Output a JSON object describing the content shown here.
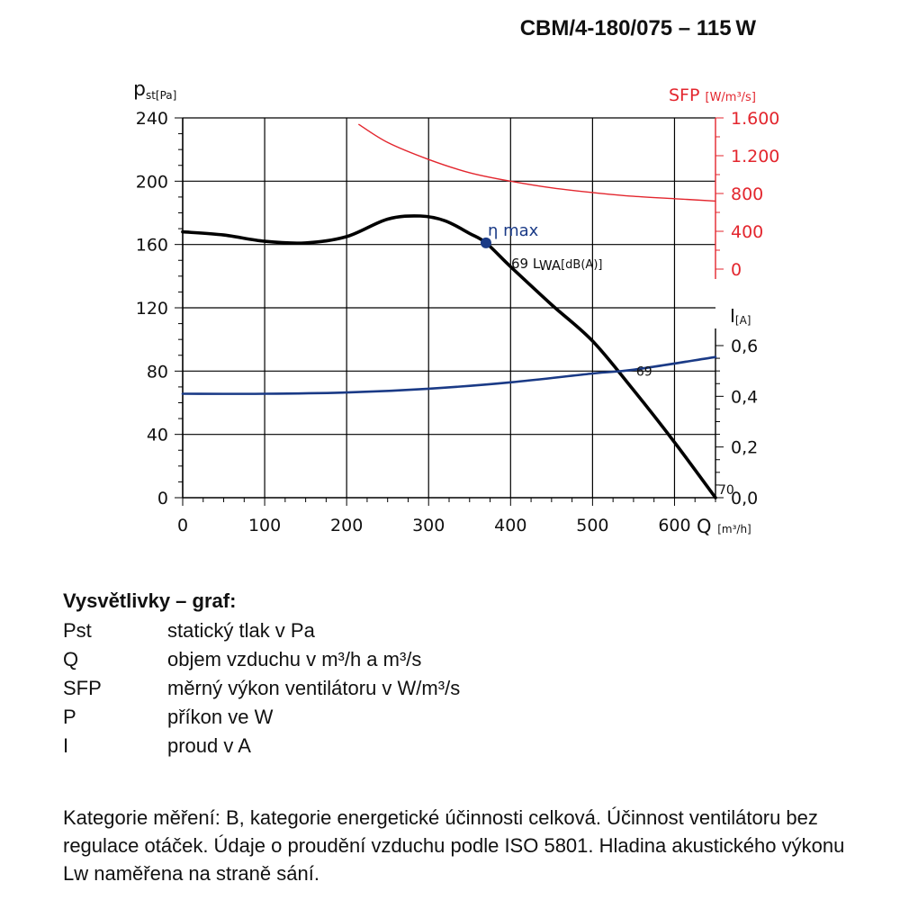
{
  "title": "CBM/4-180/075 – 115 W",
  "chart_data": {
    "type": "line",
    "axes": {
      "x": {
        "label": "Q",
        "unit": "[m³/h]",
        "range": [
          0,
          650
        ],
        "ticks": [
          0,
          100,
          200,
          300,
          400,
          500,
          600
        ]
      },
      "y_left": {
        "label": "p",
        "subscript": "st",
        "unit": "[Pa]",
        "range": [
          0,
          240
        ],
        "ticks": [
          0,
          40,
          80,
          120,
          160,
          200,
          240
        ]
      },
      "y_right_sfp": {
        "label": "SFP",
        "unit": "[W/m³/s]",
        "range": [
          0,
          1600
        ],
        "ticks": [
          "0",
          "400",
          "800",
          "1.200",
          "1.600"
        ],
        "tick_values": [
          0,
          400,
          800,
          1200,
          1600
        ],
        "color": "#e3262e"
      },
      "y_right_current": {
        "label": "I",
        "unit": "[A]",
        "range": [
          0,
          0.6
        ],
        "ticks": [
          "0,0",
          "0,2",
          "0,4",
          "0,6"
        ],
        "tick_values": [
          0,
          0.2,
          0.4,
          0.6
        ]
      }
    },
    "grid": true,
    "series": [
      {
        "kind": "pressure",
        "color": "#000000",
        "x": [
          0,
          50,
          100,
          150,
          200,
          250,
          290,
          320,
          350,
          370,
          400,
          450,
          500,
          550,
          600,
          650
        ],
        "y": [
          168,
          166,
          162,
          161,
          165,
          176,
          178,
          175,
          167,
          161,
          146,
          122,
          99,
          68,
          35,
          0
        ]
      },
      {
        "kind": "current",
        "color": "#1a3a86",
        "x": [
          0,
          100,
          200,
          300,
          400,
          500,
          550,
          650
        ],
        "y": [
          0.41,
          0.41,
          0.415,
          0.43,
          0.455,
          0.49,
          0.505,
          0.555
        ]
      },
      {
        "kind": "sfp",
        "color": "#e3262e",
        "x": [
          215,
          250,
          300,
          350,
          400,
          450,
          500,
          550,
          600,
          650
        ],
        "y": [
          1530,
          1340,
          1160,
          1020,
          930,
          860,
          810,
          770,
          745,
          720
        ]
      }
    ],
    "annotations": [
      {
        "text": "η max",
        "x": 370,
        "y": 161,
        "color": "#1a3a86",
        "marker": true
      },
      {
        "text": "69 L",
        "sub": "WA",
        "suffix": "[dB(A)]",
        "x": 370,
        "y": 161
      },
      {
        "text": "69",
        "x": 540,
        "y": 80
      },
      {
        "text": "70",
        "x": 650,
        "y": 0
      }
    ]
  },
  "legend": {
    "title": "Vysvětlivky – graf:",
    "items": [
      {
        "key": "Pst",
        "desc": "statický tlak v Pa"
      },
      {
        "key": "Q",
        "desc": "objem vzduchu v m³/h a m³/s"
      },
      {
        "key": "SFP",
        "desc": "měrný výkon ventilátoru v W/m³/s"
      },
      {
        "key": "P",
        "desc": "příkon ve W"
      },
      {
        "key": "I",
        "desc": "proud v A"
      }
    ]
  },
  "note": "Kategorie měření: B, kategorie energetické účinnosti celková. Účinnost ventilátoru bez regulace otáček. Údaje o proudění vzduchu podle ISO 5801. Hladina akustického výkonu Lw naměřena na straně sání."
}
